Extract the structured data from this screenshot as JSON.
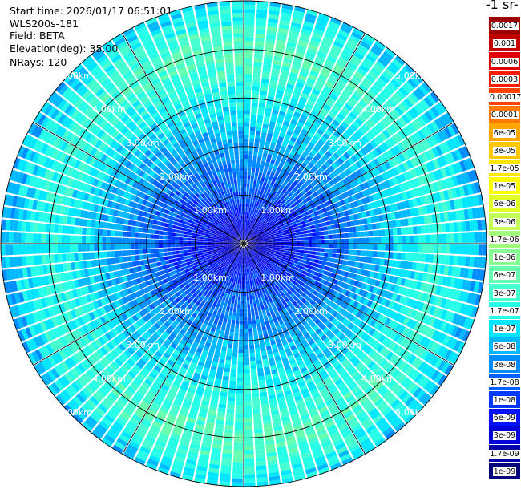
{
  "header": {
    "start_time": "Start time: 2026/01/17 06:51:01",
    "instrument": "WLS200s-181",
    "field": "Field: BETA",
    "elevation": "Elevation(deg): 35.00",
    "nrays": "NRays: 120"
  },
  "colorbar": {
    "title": "-1 sr-",
    "levels": [
      "0.0017",
      "0.001",
      "0.0006",
      "0.0003",
      "0.00017",
      "0.0001",
      "6e-05",
      "3e-05",
      "1.7e-05",
      "1e-05",
      "6e-06",
      "3e-06",
      "1.7e-06",
      "1e-06",
      "6e-07",
      "3e-07",
      "1.7e-07",
      "1e-07",
      "6e-08",
      "3e-08",
      "1.7e-08",
      "1e-08",
      "6e-09",
      "3e-09",
      "1.7e-09",
      "1e-09"
    ],
    "colors": [
      "#9e0000",
      "#c20000",
      "#e00000",
      "#ff1a00",
      "#ff4400",
      "#ff7a00",
      "#ffa600",
      "#ffc800",
      "#ffe600",
      "#ffff00",
      "#e2ff2a",
      "#c4ff58",
      "#a4ff7a",
      "#86ff92",
      "#66ffb0",
      "#46ffd0",
      "#26ffe8",
      "#00e6ff",
      "#00b8ff",
      "#008cff",
      "#0060ff",
      "#0038ff",
      "#0010ff",
      "#0000d8",
      "#0000a8",
      "#00007a"
    ]
  },
  "chart_data": {
    "type": "heatmap",
    "projection": "polar-ppi",
    "field": "BETA",
    "elevation_deg": 35.0,
    "n_rays": 120,
    "range_rings_km": [
      1.0,
      2.0,
      3.0,
      4.0,
      5.0
    ],
    "ring_labels": [
      "1.00km",
      "2.00km",
      "3.00km",
      "4.00km",
      "5.00km"
    ],
    "max_range_km": 5.0,
    "spokes_deg": [
      0,
      30,
      60,
      90,
      120,
      150,
      180,
      210,
      240,
      270,
      300,
      330
    ],
    "radial_profile": {
      "range_km": [
        0.0,
        1.0,
        1.5,
        2.0,
        2.5,
        3.0,
        3.5,
        4.0,
        4.5,
        5.0
      ],
      "value": [
        "1.7e-09",
        "1e-08",
        "1.7e-08",
        "3e-08",
        "6e-08",
        "1e-07",
        "1.7e-07",
        "3e-07",
        "1.7e-07",
        "6e-08"
      ]
    },
    "colorscale": "log",
    "range": [
      "1e-09",
      "0.0017"
    ]
  }
}
